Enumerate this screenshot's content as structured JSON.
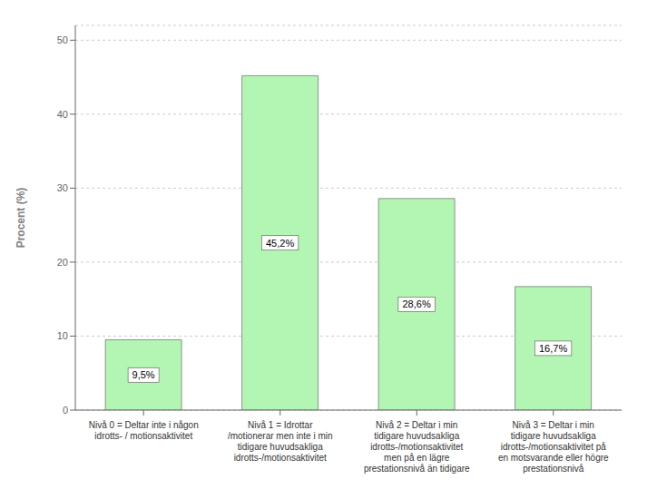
{
  "chart_data": {
    "type": "bar",
    "categories": [
      "Nivå 0 = Deltar inte i någon\nidrotts- / motionsaktivitet",
      "Nivå 1 = Idrottar\n/motionerar men inte i min\ntidigare huvudsakliga\nidrotts-/motionsaktivitet",
      "Nivå 2 = Deltar i min\ntidigare huvudsakliga\nidrotts-/motionsaktivitet\nmen på en lägre\nprestationsnivå än tidigare",
      "Nivå 3 = Deltar i min\ntidigare huvudsakliga\nidrotts-/motionsaktivitet på\nen motsvarande eller högre\nprestationsnivå"
    ],
    "values": [
      9.5,
      45.2,
      28.6,
      16.7
    ],
    "value_labels": [
      "9,5%",
      "45,2%",
      "28,6%",
      "16,7%"
    ],
    "data_labels": true,
    "color": "#b3f5b3",
    "ylabel": "Procent (%)",
    "ylim": [
      0,
      52
    ],
    "yticks": [
      0,
      10,
      20,
      30,
      40,
      50
    ],
    "grid": true
  }
}
